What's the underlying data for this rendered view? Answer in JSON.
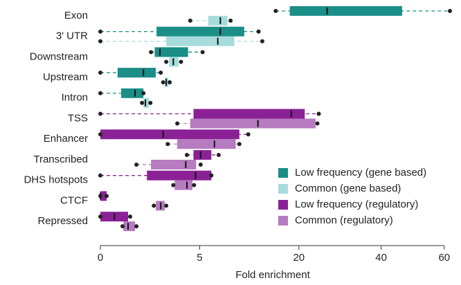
{
  "chart_data": {
    "type": "boxplot",
    "x_label": "Fold enrichment",
    "x_scale": "sqrt",
    "categories": [
      "Exon",
      "3′ UTR",
      "Downstream",
      "Upstream",
      "Intron",
      "TSS",
      "Enhancer",
      "Transcribed",
      "DHS hotspots",
      "CTCF",
      "Repressed"
    ],
    "xlim": [
      0,
      62
    ],
    "xticks": [
      0,
      5,
      20,
      40,
      60
    ],
    "legend": "lower right",
    "series": [
      {
        "name": "Low frequency (gene based)",
        "color": "#1b8e88",
        "values": [
          [
            15.6,
            18.2,
            26.1,
            46.2,
            62
          ],
          [
            0,
            1.6,
            7.3,
            10.5,
            12.7
          ],
          [
            1.3,
            1.5,
            1.8,
            3.9,
            5.3
          ],
          [
            0,
            0.15,
            0.94,
            1.56,
            1.85
          ],
          [
            0,
            0.22,
            0.61,
            0.94,
            0.94
          ],
          null,
          null,
          null,
          null,
          null,
          null
        ]
      },
      {
        "name": "Common (gene based)",
        "color": "#a6dcdc",
        "values": [
          [
            4.1,
            5.9,
            7.3,
            8.2,
            8.6
          ],
          [
            0,
            2.2,
            7.0,
            9.1,
            13.3
          ],
          [
            2.2,
            2.4,
            2.7,
            3.1,
            3.3
          ],
          [
            2.0,
            2.1,
            2.2,
            2.35,
            2.44
          ],
          [
            0.88,
            0.94,
            1.03,
            1.2,
            1.27
          ],
          null,
          null,
          null,
          null,
          null,
          null
        ]
      },
      {
        "name": "Low frequency (regulatory)",
        "color": "#8a2296",
        "values": [
          null,
          null,
          null,
          null,
          null,
          [
            0,
            4.4,
            18.5,
            21.2,
            24.2
          ],
          [
            0,
            0,
            2.0,
            9.8,
            11.1
          ],
          [
            3.8,
            4.4,
            5.1,
            6.25,
            7.1
          ],
          [
            0,
            1.1,
            4.6,
            6.25,
            6.25
          ],
          [
            0,
            0,
            0,
            0.02,
            0.02
          ],
          [
            0,
            0,
            0.1,
            0.39,
            0.45
          ]
        ]
      },
      {
        "name": "Common (regulatory)",
        "color": "#b67bc0",
        "values": [
          null,
          null,
          null,
          null,
          null,
          [
            3.0,
            4.1,
            12.6,
            23.5,
            23.9
          ],
          [
            2.3,
            3.0,
            6.6,
            9.3,
            9.8
          ],
          [
            0.66,
            1.3,
            3.7,
            4.65,
            5.1
          ],
          [
            2.7,
            2.8,
            3.8,
            4.3,
            4.45
          ],
          [
            1.45,
            1.56,
            1.85,
            2.1,
            2.2
          ],
          [
            0.25,
            0.27,
            0.39,
            0.61,
            0.66
          ]
        ]
      }
    ]
  }
}
